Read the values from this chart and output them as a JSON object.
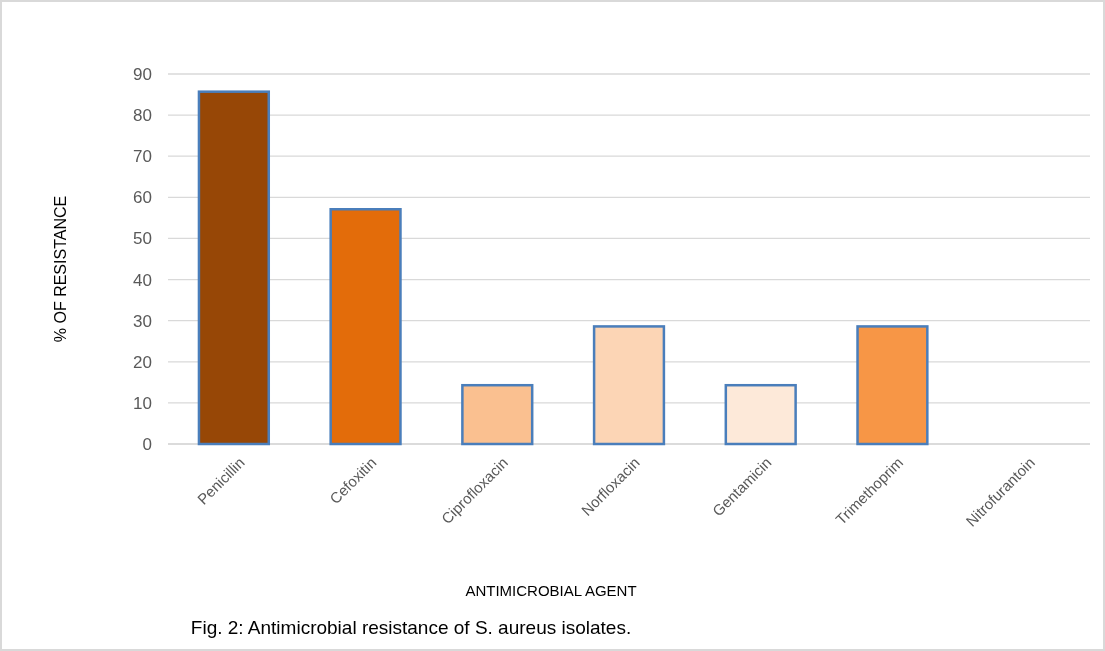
{
  "chart_data": {
    "type": "bar",
    "xlabel": "ANTIMICROBIAL AGENT",
    "ylabel": "% OF RESISTANCE",
    "categories": [
      "Penicillin",
      "Cefoxitin",
      "Ciprofloxacin",
      "Norfloxacin",
      "Gentamicin",
      "Trimethoprim",
      "Nitrofurantoin"
    ],
    "values": [
      85.7,
      57.1,
      14.3,
      28.6,
      14.3,
      28.6,
      0
    ],
    "colors": [
      "#974706",
      "#e36c0a",
      "#fac090",
      "#fcd5b5",
      "#fde9d9",
      "#f79646",
      "#f79646"
    ],
    "ylim": [
      0,
      90
    ],
    "yticks": [
      0,
      10,
      20,
      30,
      40,
      50,
      60,
      70,
      80,
      90
    ],
    "grid": "y",
    "annotations": [
      "Fig. 2: Antimicrobial resistance of S. aureus isolates."
    ]
  }
}
